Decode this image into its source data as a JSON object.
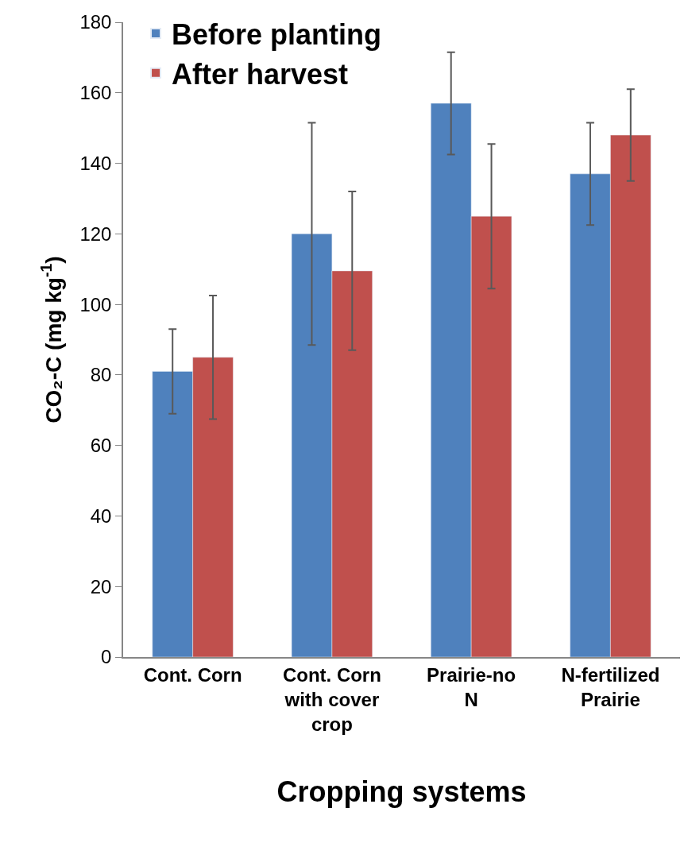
{
  "chart_data": {
    "type": "bar",
    "xlabel": "Cropping systems",
    "ylabel": "CO₂-C (mg kg$^{-1}$)",
    "categories": [
      "Cont. Corn",
      "Cont. Corn with cover crop",
      "Prairie-no N",
      "N-fertilized Prairie"
    ],
    "series": [
      {
        "name": "Before planting",
        "color": "#4f81bd",
        "values": [
          81,
          120,
          157,
          137
        ],
        "errors": [
          12,
          31.5,
          14.5,
          14.5
        ]
      },
      {
        "name": "After harvest",
        "color": "#c0504d",
        "values": [
          85,
          109.5,
          125,
          148
        ],
        "errors": [
          17.5,
          22.5,
          20.5,
          13
        ]
      }
    ],
    "ylim": [
      0,
      180
    ],
    "yticks": [
      0,
      20,
      40,
      60,
      80,
      100,
      120,
      140,
      160,
      180
    ],
    "legend": "top left"
  }
}
